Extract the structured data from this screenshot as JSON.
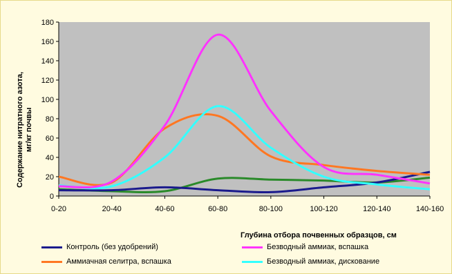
{
  "chart_data": {
    "type": "line",
    "title": "",
    "xlabel": "Глубина отбора почвенных образцов, см",
    "ylabel_line1": "Содержание нитратного азота,",
    "ylabel_line2": "мг/кг почвы",
    "ylim": [
      0,
      180
    ],
    "yticks": [
      0,
      20,
      40,
      60,
      80,
      100,
      120,
      140,
      160,
      180
    ],
    "categories": [
      "0-20",
      "20-40",
      "40-60",
      "60-80",
      "80-100",
      "100-120",
      "120-140",
      "140-160"
    ],
    "grid": false,
    "plot_background": "#c0c0c0",
    "legend_position": "bottom",
    "series": [
      {
        "name": "Контроль (без удобрений)",
        "color": "#1a1a8c",
        "values": [
          6,
          6,
          9,
          6,
          4,
          9,
          14,
          25
        ]
      },
      {
        "name": "Безводный аммиак, вспашка",
        "color": "#ff33ff",
        "values": [
          10,
          15,
          73,
          167,
          88,
          30,
          22,
          13
        ]
      },
      {
        "name": "Аммиачная селитра, вспашка",
        "color": "#ff7722",
        "values": [
          20,
          14,
          70,
          83,
          41,
          32,
          26,
          22
        ]
      },
      {
        "name": "Безводный аммиак, дискование",
        "color": "#33ffff",
        "values": [
          11,
          10,
          40,
          93,
          50,
          20,
          12,
          7
        ]
      },
      {
        "name": "",
        "color": "#2a8a2a",
        "values": [
          7,
          5,
          5,
          18,
          17,
          16,
          14,
          19
        ]
      }
    ]
  }
}
